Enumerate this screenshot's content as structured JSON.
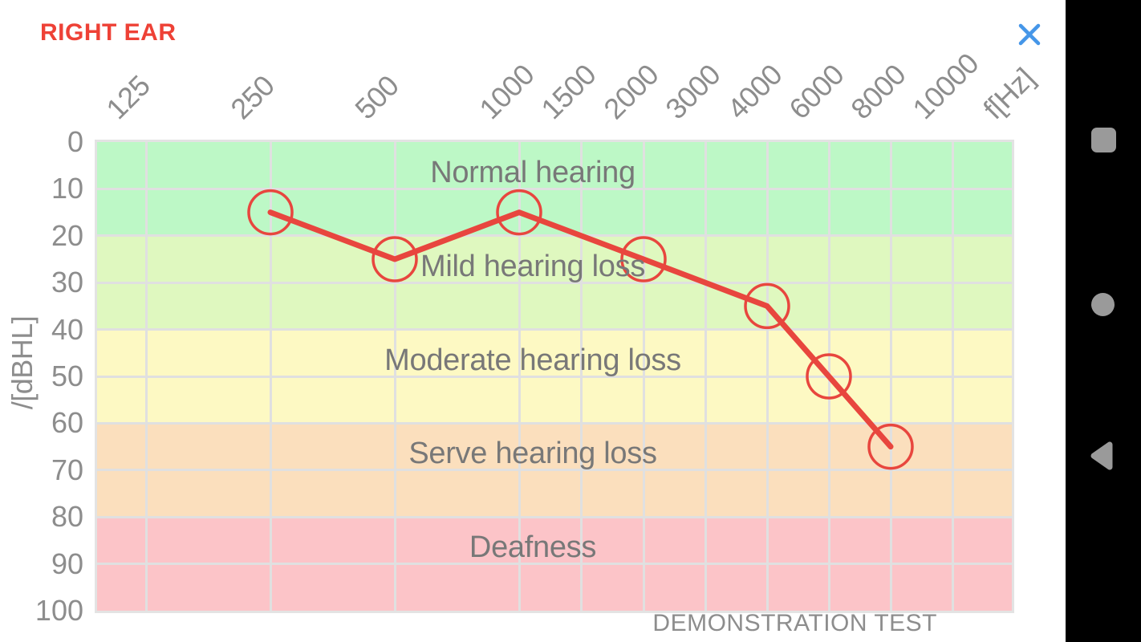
{
  "header": {
    "title": "RIGHT EAR",
    "title_color": "#ee4136",
    "close_icon_color": "#4596e8"
  },
  "chart_data": {
    "type": "line",
    "title": "RIGHT EAR",
    "x_label": "f[Hz]",
    "y_label": "/[dBHL]",
    "x_ticks": [
      125,
      250,
      500,
      1000,
      1500,
      2000,
      3000,
      4000,
      6000,
      8000,
      10000
    ],
    "y_ticks": [
      0,
      10,
      20,
      30,
      40,
      50,
      60,
      70,
      80,
      90,
      100
    ],
    "y_range": [
      0,
      100
    ],
    "grid": true,
    "annotation": "DEMONSTRATION TEST",
    "series": [
      {
        "name": "right-ear-threshold",
        "color": "#e8463e",
        "marker": "open-circle",
        "points": [
          {
            "freq": 250,
            "db": 15
          },
          {
            "freq": 500,
            "db": 25
          },
          {
            "freq": 1000,
            "db": 15
          },
          {
            "freq": 2000,
            "db": 25
          },
          {
            "freq": 4000,
            "db": 35
          },
          {
            "freq": 6000,
            "db": 50
          },
          {
            "freq": 8000,
            "db": 65
          }
        ]
      }
    ],
    "zones": [
      {
        "label": "Normal hearing",
        "from_db": 0,
        "to_db": 20,
        "color": "#bdf8c6"
      },
      {
        "label": "Mild hearing loss",
        "from_db": 20,
        "to_db": 40,
        "color": "#dff8bf"
      },
      {
        "label": "Moderate hearing loss",
        "from_db": 40,
        "to_db": 60,
        "color": "#fdf9c3"
      },
      {
        "label": "Serve hearing loss",
        "from_db": 60,
        "to_db": 80,
        "color": "#fbdfbd"
      },
      {
        "label": "Deafness",
        "from_db": 80,
        "to_db": 100,
        "color": "#fcc4c8"
      }
    ]
  },
  "navbar": {
    "icons": [
      "recents",
      "home",
      "back"
    ]
  }
}
